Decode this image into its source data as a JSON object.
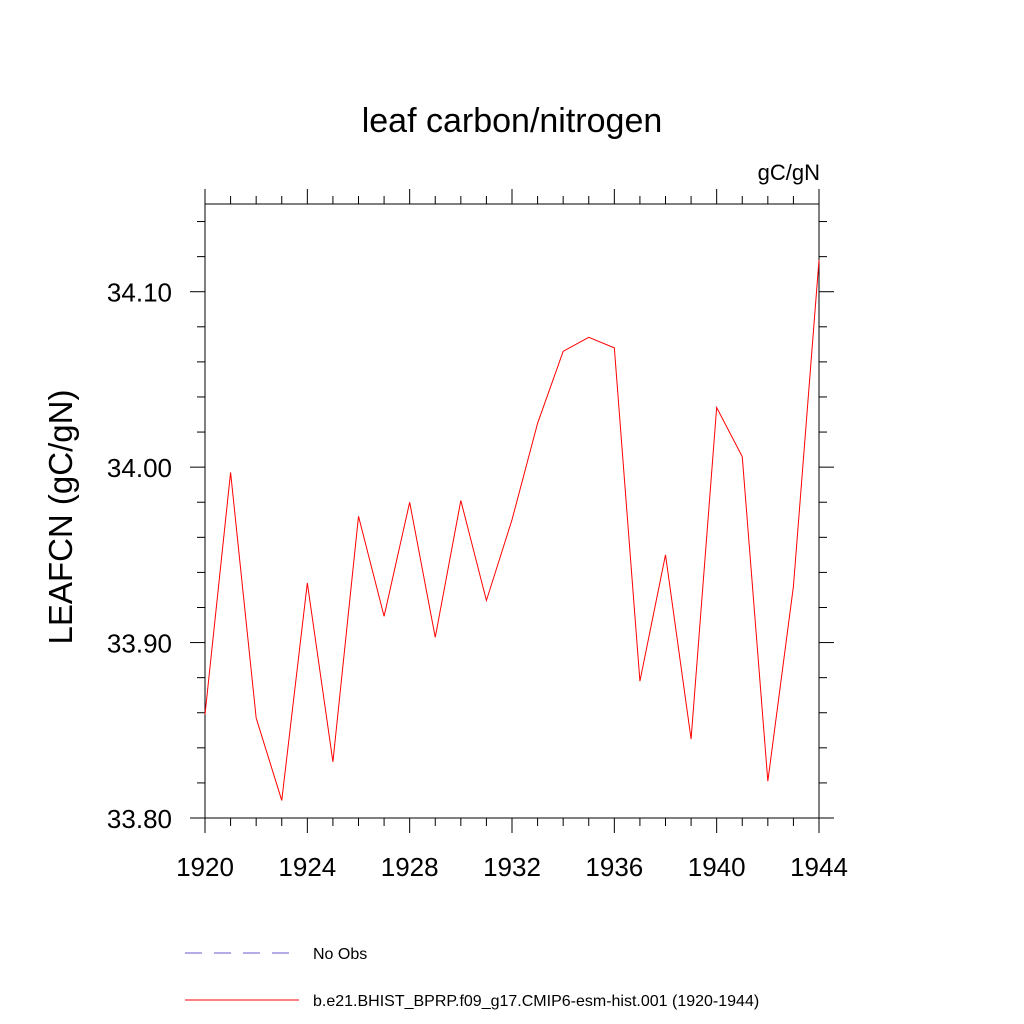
{
  "chart_data": {
    "type": "line",
    "title": "leaf carbon/nitrogen",
    "units_label": "gC/gN",
    "xlabel": "",
    "ylabel": "LEAFCN  (gC/gN)",
    "xlim": [
      1920,
      1944
    ],
    "ylim": [
      33.8,
      34.15
    ],
    "x_ticks": [
      1920,
      1924,
      1928,
      1932,
      1936,
      1940,
      1944
    ],
    "x_tick_labels": [
      "1920",
      "1924",
      "1928",
      "1932",
      "1936",
      "1940",
      "1944"
    ],
    "y_ticks": [
      33.8,
      33.9,
      34.0,
      34.1
    ],
    "y_tick_labels": [
      "33.80",
      "33.90",
      "34.00",
      "34.10"
    ],
    "grid": false,
    "legend_position": "bottom",
    "series": [
      {
        "name": "No Obs",
        "color": "#6a5acd",
        "dash": "dashed",
        "x": [],
        "values": []
      },
      {
        "name": "b.e21.BHIST_BPRP.f09_g17.CMIP6-esm-hist.001 (1920-1944)",
        "color": "#ff0000",
        "dash": "solid",
        "x": [
          1920,
          1921,
          1922,
          1923,
          1924,
          1925,
          1926,
          1927,
          1928,
          1929,
          1930,
          1931,
          1932,
          1933,
          1934,
          1935,
          1936,
          1937,
          1938,
          1939,
          1940,
          1941,
          1942,
          1943,
          1944
        ],
        "values": [
          33.859,
          33.997,
          33.857,
          33.81,
          33.934,
          33.832,
          33.972,
          33.915,
          33.98,
          33.903,
          33.981,
          33.924,
          33.97,
          34.025,
          34.066,
          34.074,
          34.068,
          33.878,
          33.95,
          33.845,
          34.034,
          34.006,
          33.821,
          33.932,
          34.118
        ]
      }
    ]
  }
}
